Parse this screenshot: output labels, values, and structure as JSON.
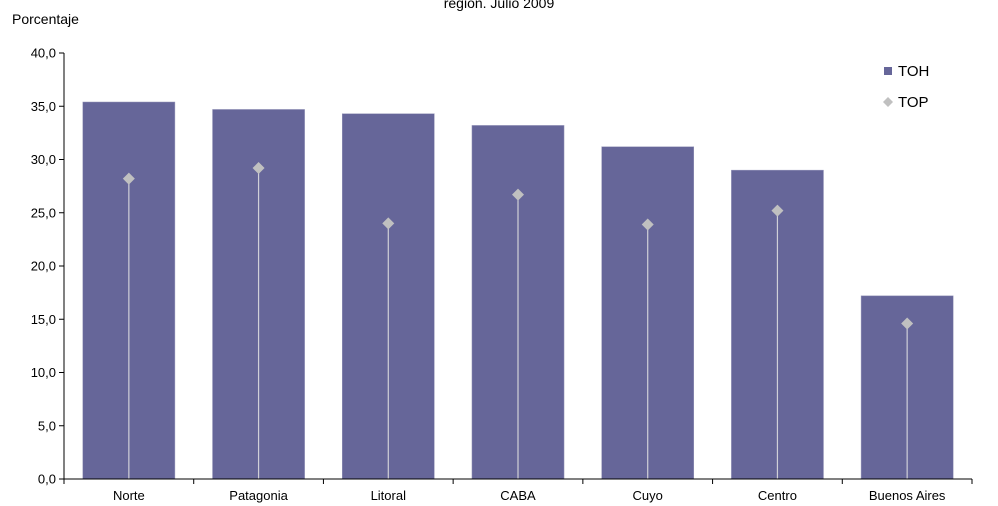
{
  "chart_data": {
    "type": "bar",
    "title": "región. Julio 2009",
    "ylabel": "Porcentaje",
    "xlabel": "",
    "categories": [
      "Norte",
      "Patagonia",
      "Litoral",
      "CABA",
      "Cuyo",
      "Centro",
      "Buenos Aires"
    ],
    "ylim": [
      0,
      40
    ],
    "yticks": [
      0,
      5,
      10,
      15,
      20,
      25,
      30,
      35,
      40
    ],
    "ytick_labels": [
      "0,0",
      "5,0",
      "10,0",
      "15,0",
      "20,0",
      "25,0",
      "30,0",
      "35,0",
      "40,0"
    ],
    "grid": false,
    "legend_position": "top-right",
    "series": [
      {
        "name": "TOH",
        "marker": "bar",
        "color": "#666699",
        "values": [
          35.4,
          34.7,
          34.3,
          33.2,
          31.2,
          29.0,
          17.2
        ]
      },
      {
        "name": "TOP",
        "marker": "diamond-with-stem",
        "color": "#c0c0c0",
        "values": [
          28.2,
          29.2,
          24.0,
          26.7,
          23.9,
          25.2,
          14.6
        ]
      }
    ]
  }
}
